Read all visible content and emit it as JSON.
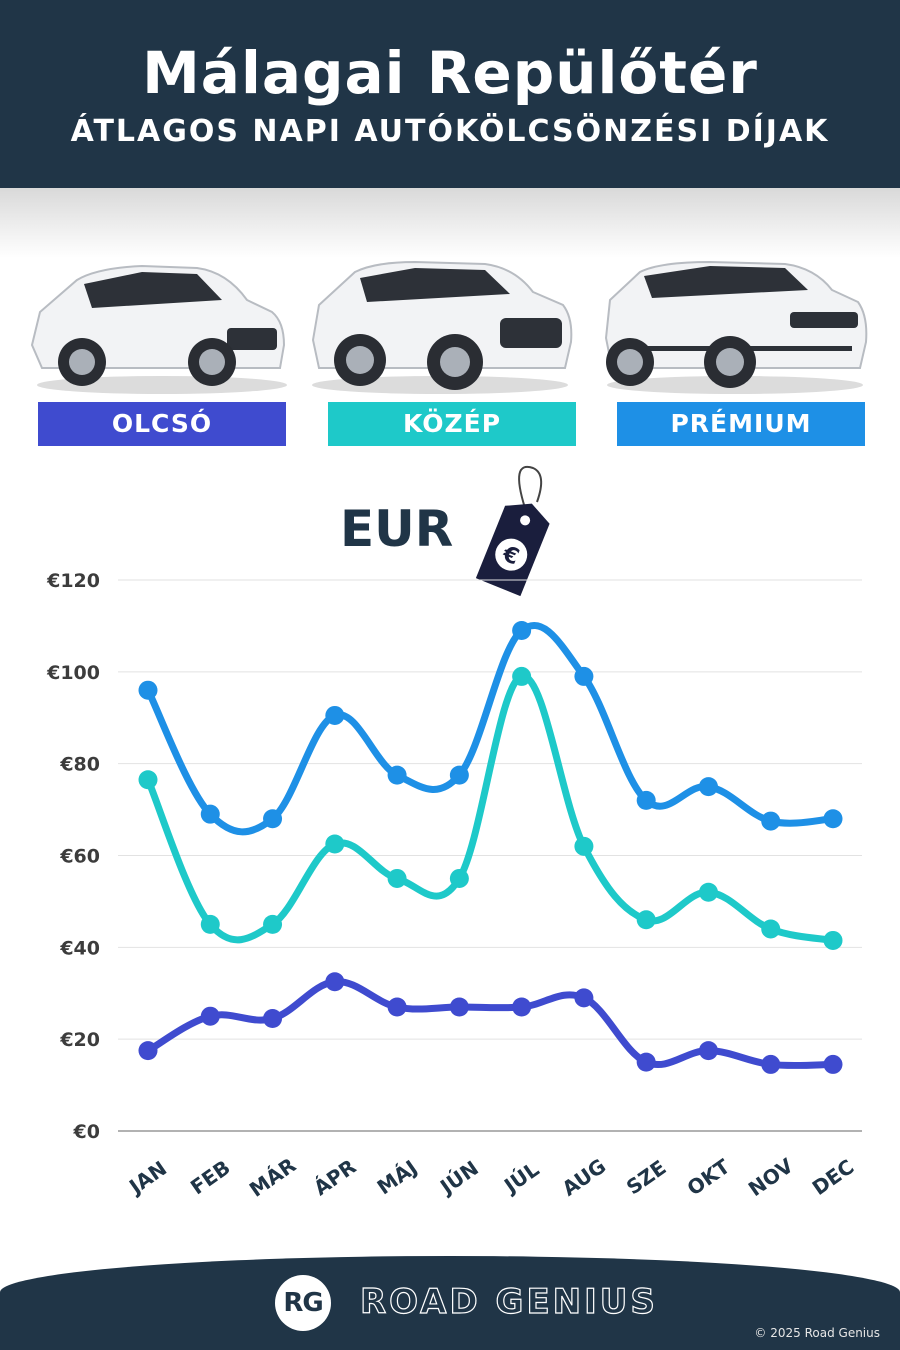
{
  "header": {
    "title": "Málagai Repülőtér",
    "subtitle": "ÁTLAGOS NAPI AUTÓKÖLCSÖNZÉSI DÍJAK"
  },
  "categories": [
    {
      "label": "OLCSÓ",
      "color": "#3f4bcf"
    },
    {
      "label": "KÖZÉP",
      "color": "#1ec9c9"
    },
    {
      "label": "PRÉMIUM",
      "color": "#1e90e6"
    }
  ],
  "currency": {
    "label": "EUR",
    "tag_symbol": "€"
  },
  "chart_data": {
    "type": "line",
    "categories": [
      "JAN",
      "FEB",
      "MÁR",
      "ÁPR",
      "MÁJ",
      "JÚN",
      "JÚL",
      "AUG",
      "SZE",
      "OKT",
      "NOV",
      "DEC"
    ],
    "series": [
      {
        "name": "OLCSÓ",
        "color": "#3f4bcf",
        "values": [
          17.5,
          25,
          24.5,
          32.5,
          27,
          27,
          27,
          29,
          15,
          17.5,
          14.5,
          14.5
        ]
      },
      {
        "name": "KÖZÉP",
        "color": "#1ec9c9",
        "values": [
          76.5,
          45,
          45,
          62.5,
          55,
          55,
          99,
          62,
          46,
          52,
          44,
          41.5
        ]
      },
      {
        "name": "PRÉMIUM",
        "color": "#1e90e6",
        "values": [
          96,
          69,
          68,
          90.5,
          77.5,
          77.5,
          109,
          99,
          72,
          75,
          67.5,
          68
        ]
      }
    ],
    "y_ticks": [
      "€0",
      "€20",
      "€40",
      "€60",
      "€80",
      "€100",
      "€120"
    ],
    "ylim": [
      0,
      120
    ],
    "grid": true
  },
  "footer": {
    "logo_initials": "RG",
    "brand": "ROAD GENIUS",
    "copyright": "© 2025 Road Genius"
  }
}
